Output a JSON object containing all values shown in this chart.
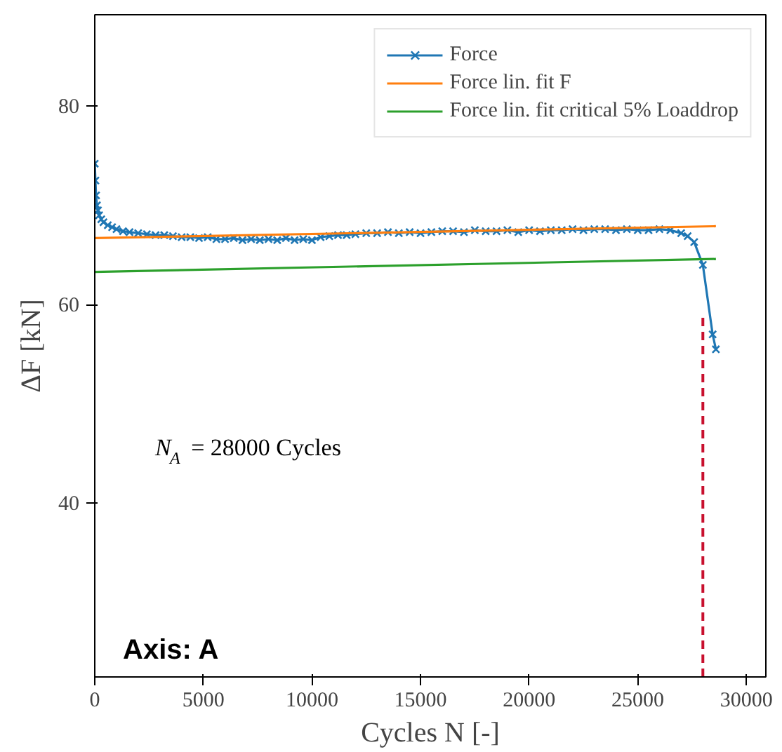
{
  "chart_data": {
    "type": "line",
    "xlabel": "Cycles N [-]",
    "ylabel": "ΔF [kN]",
    "xlim": [
      0,
      30900
    ],
    "ylim": [
      22.5,
      89.2
    ],
    "xticks": [
      0,
      5000,
      10000,
      15000,
      20000,
      25000,
      30000
    ],
    "yticks": [
      40,
      60,
      80
    ],
    "grid": false,
    "legend": "top right",
    "series": [
      {
        "name": "Force",
        "color": "#1f77b4",
        "marker": "cross",
        "x": [
          0,
          30,
          60,
          100,
          150,
          200,
          300,
          400,
          600,
          800,
          1000,
          1300,
          1600,
          2000,
          2400,
          2800,
          3200,
          3600,
          4000,
          4400,
          4800,
          5200,
          5600,
          6000,
          6400,
          6800,
          7200,
          7600,
          8000,
          8400,
          8800,
          9200,
          9600,
          10000,
          10400,
          10800,
          11200,
          11600,
          12000,
          12500,
          13000,
          13500,
          14000,
          14500,
          15000,
          15500,
          16000,
          16500,
          17000,
          17500,
          18000,
          18500,
          19000,
          19500,
          20000,
          20500,
          21000,
          21500,
          22000,
          22500,
          23000,
          23500,
          24000,
          24500,
          25000,
          25500,
          26000,
          26500,
          27000,
          27300,
          27600,
          28000,
          28450,
          28600
        ],
        "values": [
          74.2,
          72.5,
          71.0,
          70.0,
          69.5,
          69.0,
          68.6,
          68.3,
          68.0,
          67.8,
          67.6,
          67.4,
          67.3,
          67.2,
          67.1,
          67.0,
          67.0,
          66.9,
          66.8,
          66.8,
          66.7,
          66.8,
          66.6,
          66.6,
          66.7,
          66.5,
          66.6,
          66.5,
          66.6,
          66.5,
          66.7,
          66.5,
          66.6,
          66.5,
          66.8,
          66.9,
          67.0,
          67.0,
          67.1,
          67.2,
          67.2,
          67.3,
          67.2,
          67.3,
          67.2,
          67.3,
          67.4,
          67.4,
          67.3,
          67.5,
          67.4,
          67.4,
          67.5,
          67.3,
          67.5,
          67.4,
          67.5,
          67.5,
          67.6,
          67.5,
          67.6,
          67.6,
          67.5,
          67.6,
          67.5,
          67.5,
          67.6,
          67.5,
          67.2,
          66.9,
          66.3,
          64.0,
          57.0,
          55.5
        ]
      },
      {
        "name": "Force lin. fit F",
        "color": "#ff7f0e",
        "marker": "none",
        "x": [
          0,
          28600
        ],
        "values": [
          66.7,
          67.9
        ]
      },
      {
        "name": "Force lin. fit critical 5% Loaddrop",
        "color": "#2ca02c",
        "marker": "none",
        "x": [
          0,
          28600
        ],
        "values": [
          63.3,
          64.6
        ]
      },
      {
        "color": "#c8102e",
        "marker": "none",
        "line_style": "dashed",
        "x": [
          28000,
          28000
        ],
        "values": [
          22.5,
          59.0
        ]
      }
    ],
    "annotations": [
      "N$_{A}$ = 28000 Cycles",
      "Axis: A"
    ]
  }
}
